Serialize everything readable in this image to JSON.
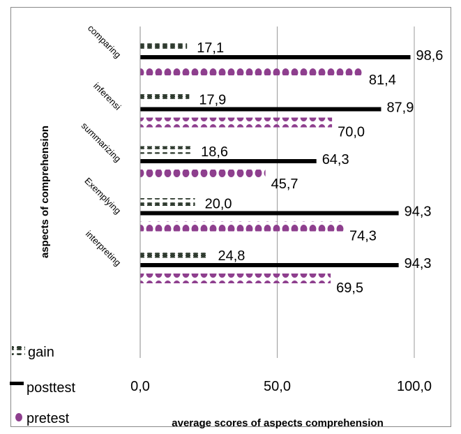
{
  "chart_data": {
    "type": "bar",
    "orientation": "horizontal",
    "categories": [
      "comparing",
      "inferensi",
      "summarizing",
      "Exemplying",
      "interpreting"
    ],
    "series": [
      {
        "name": "gain",
        "values": [
          17.1,
          17.9,
          18.6,
          20.0,
          24.8
        ],
        "labels": [
          "17,1",
          "17,9",
          "18,6",
          "20,0",
          "24,8"
        ],
        "color": "#2f3b2f",
        "pattern": "crosses"
      },
      {
        "name": "posttest",
        "values": [
          98.6,
          87.9,
          64.3,
          94.3,
          94.3
        ],
        "labels": [
          "98,6",
          "87,9",
          "64,3",
          "94,3",
          "94,3"
        ],
        "color": "#000000",
        "pattern": "solid"
      },
      {
        "name": "pretest",
        "values": [
          81.4,
          70.0,
          45.7,
          74.3,
          69.5
        ],
        "labels": [
          "81,4",
          "70,0",
          "45,7",
          "74,3",
          "69,5"
        ],
        "color": "#8e3f8e",
        "pattern": "dots"
      }
    ],
    "xlim": [
      0,
      100
    ],
    "xticks": [
      0,
      50,
      100
    ],
    "xtick_labels": [
      "0,0",
      "50,0",
      "100,0"
    ],
    "xlabel": "average scores of aspects comprehension",
    "ylabel": "aspects of comprehension",
    "grid": "vertical",
    "legend": {
      "position": "bottom-left",
      "entries": [
        "gain",
        "posttest",
        "pretest"
      ]
    }
  }
}
